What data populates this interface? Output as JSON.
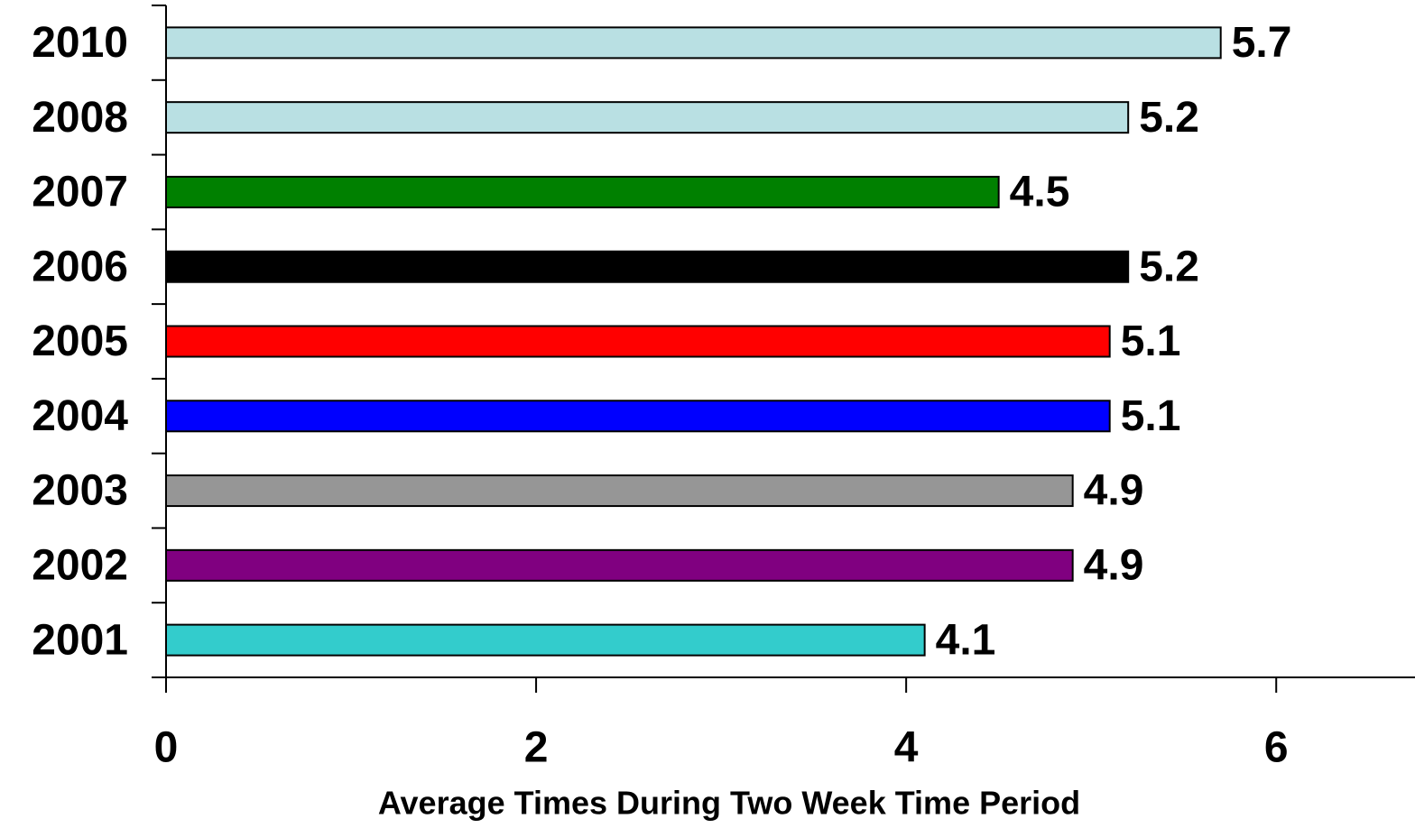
{
  "chart_data": {
    "type": "bar",
    "orientation": "horizontal",
    "x_label": "Average Times During Two Week Time Period",
    "categories": [
      "2010",
      "2008",
      "2007",
      "2006",
      "2005",
      "2004",
      "2003",
      "2002",
      "2001"
    ],
    "values": [
      5.7,
      5.2,
      4.5,
      5.2,
      5.1,
      5.1,
      4.9,
      4.9,
      4.1
    ],
    "colors": [
      "#b9e0e3",
      "#b9e0e3",
      "#008000",
      "#000000",
      "#ff0000",
      "#0000ff",
      "#969696",
      "#800080",
      "#33cccc"
    ],
    "xlim": [
      0,
      6.75
    ],
    "xticks": [
      0,
      2,
      4,
      6
    ],
    "grid": false
  }
}
